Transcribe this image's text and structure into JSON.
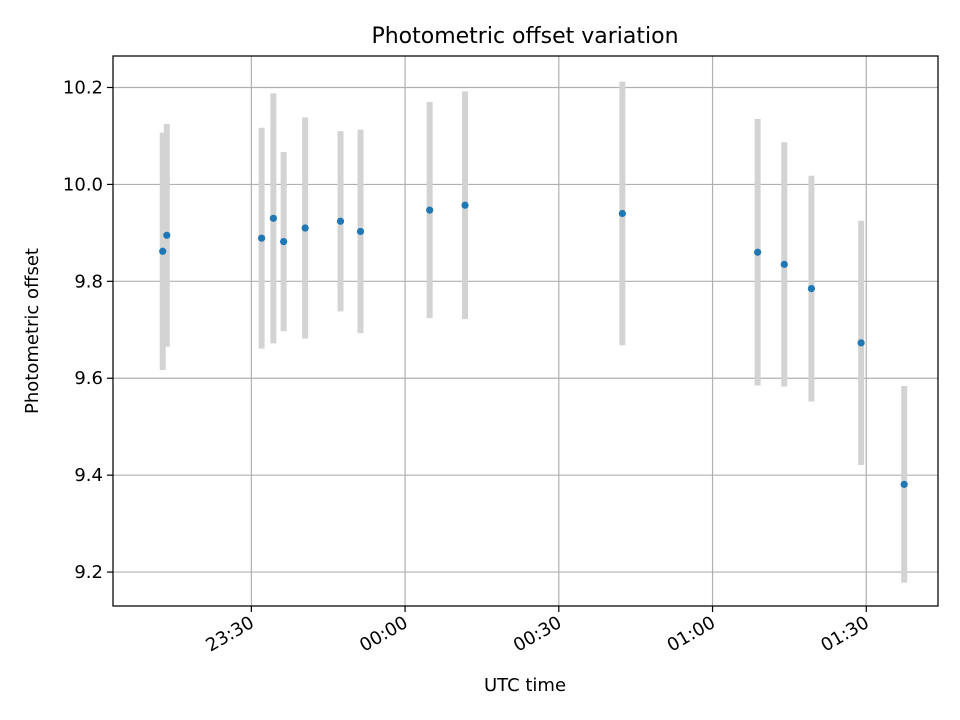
{
  "chart_data": {
    "type": "scatter",
    "title": "Photometric offset variation",
    "xlabel": "UTC time",
    "ylabel": "Photometric offset",
    "x_tick_labels": [
      "23:30",
      "00:00",
      "00:30",
      "01:00",
      "01:30"
    ],
    "x_tick_times": [
      "2000-01-01T23:30",
      "2000-01-02T00:00",
      "2000-01-02T00:30",
      "2000-01-02T01:00",
      "2000-01-02T01:30"
    ],
    "xlim": [
      "2000-01-01T23:03",
      "2000-01-02T01:44"
    ],
    "y_tick_labels": [
      "9.2",
      "9.4",
      "9.6",
      "9.8",
      "10.0",
      "10.2"
    ],
    "y_ticks": [
      9.2,
      9.4,
      9.6,
      9.8,
      10.0,
      10.2
    ],
    "ylim": [
      9.13,
      10.265
    ],
    "grid": true,
    "colors": {
      "point": "#1f77b4",
      "errorbar": "#d3d3d3",
      "grid": "#b0b0b0"
    },
    "points": [
      {
        "x": "2000-01-01T23:12:42",
        "y": 9.862,
        "yerr": 0.245
      },
      {
        "x": "2000-01-01T23:13:30",
        "y": 9.895,
        "yerr": 0.23
      },
      {
        "x": "2000-01-01T23:32:00",
        "y": 9.889,
        "yerr": 0.228
      },
      {
        "x": "2000-01-01T23:34:18",
        "y": 9.93,
        "yerr": 0.258
      },
      {
        "x": "2000-01-01T23:36:18",
        "y": 9.882,
        "yerr": 0.185
      },
      {
        "x": "2000-01-01T23:40:30",
        "y": 9.91,
        "yerr": 0.228
      },
      {
        "x": "2000-01-01T23:47:24",
        "y": 9.924,
        "yerr": 0.186
      },
      {
        "x": "2000-01-01T23:51:18",
        "y": 9.903,
        "yerr": 0.21
      },
      {
        "x": "2000-01-02T00:04:48",
        "y": 9.947,
        "yerr": 0.223
      },
      {
        "x": "2000-01-02T00:11:42",
        "y": 9.957,
        "yerr": 0.235
      },
      {
        "x": "2000-01-02T00:42:24",
        "y": 9.94,
        "yerr": 0.272
      },
      {
        "x": "2000-01-02T01:08:48",
        "y": 9.86,
        "yerr": 0.275
      },
      {
        "x": "2000-01-02T01:14:00",
        "y": 9.835,
        "yerr": 0.252
      },
      {
        "x": "2000-01-02T01:19:18",
        "y": 9.785,
        "yerr": 0.233
      },
      {
        "x": "2000-01-02T01:29:00",
        "y": 9.673,
        "yerr": 0.252
      },
      {
        "x": "2000-01-02T01:37:24",
        "y": 9.381,
        "yerr": 0.203
      }
    ]
  }
}
